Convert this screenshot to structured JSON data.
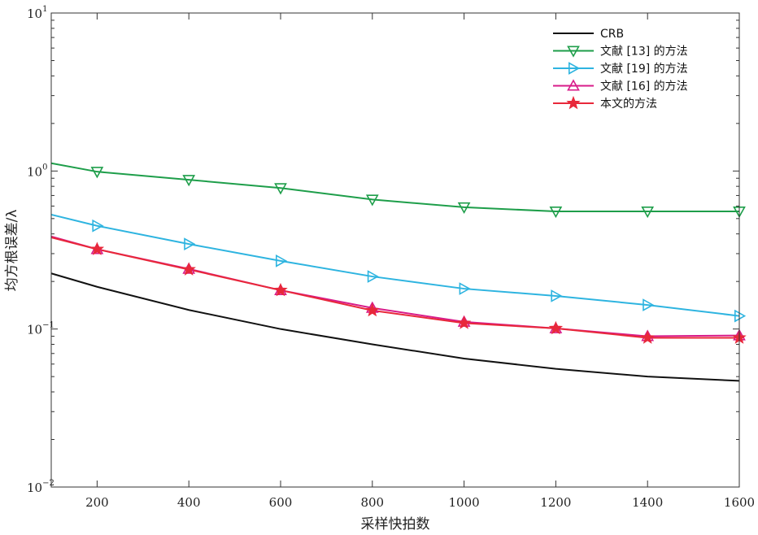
{
  "chart_data": {
    "type": "line",
    "xlabel": "采样快拍数",
    "ylabel": "均方根误差/λ",
    "x_ticks": [
      200,
      400,
      600,
      800,
      1000,
      1200,
      1400,
      1600
    ],
    "y_ticks": [
      {
        "value": 0.01,
        "base": "10",
        "exp": "−2"
      },
      {
        "value": 0.1,
        "base": "10",
        "exp": "−1"
      },
      {
        "value": 1,
        "base": "10",
        "exp": "0"
      },
      {
        "value": 10,
        "base": "10",
        "exp": "1"
      }
    ],
    "xlim": [
      100,
      1600
    ],
    "ylim": [
      0.01,
      10
    ],
    "y_scale": "log",
    "grid": false,
    "legend_position": "top-right",
    "x": [
      100,
      200,
      400,
      600,
      800,
      1000,
      1200,
      1400,
      1600
    ],
    "series": [
      {
        "name": "CRB",
        "color": "#111111",
        "marker": "none",
        "marker_x": [],
        "values": [
          0.225,
          0.185,
          0.132,
          0.1,
          0.08,
          0.065,
          0.056,
          0.05,
          0.047
        ]
      },
      {
        "name": "文献 [13] 的方法",
        "color": "#1e9e4a",
        "marker": "triangle-down",
        "marker_x": [
          200,
          400,
          600,
          800,
          1000,
          1200,
          1400,
          1600
        ],
        "values": [
          1.12,
          0.99,
          0.88,
          0.78,
          0.66,
          0.59,
          0.555,
          0.555,
          0.555
        ]
      },
      {
        "name": "文献 [19] 的方法",
        "color": "#2eb4e0",
        "marker": "triangle-right",
        "marker_x": [
          200,
          400,
          600,
          800,
          1000,
          1200,
          1400,
          1600
        ],
        "values": [
          0.53,
          0.45,
          0.345,
          0.27,
          0.215,
          0.18,
          0.162,
          0.142,
          0.121
        ]
      },
      {
        "name": "文献 [16] 的方法",
        "color": "#d81b8a",
        "marker": "triangle-up",
        "marker_x": [
          200,
          400,
          600,
          800,
          1000,
          1200,
          1400,
          1600
        ],
        "values": [
          0.385,
          0.32,
          0.24,
          0.176,
          0.136,
          0.111,
          0.101,
          0.09,
          0.091
        ]
      },
      {
        "name": "本文的方法",
        "color": "#e8283a",
        "marker": "star",
        "marker_x": [
          200,
          400,
          600,
          800,
          1000,
          1200,
          1400,
          1600
        ],
        "values": [
          0.38,
          0.32,
          0.238,
          0.176,
          0.131,
          0.109,
          0.101,
          0.088,
          0.088
        ]
      }
    ]
  }
}
